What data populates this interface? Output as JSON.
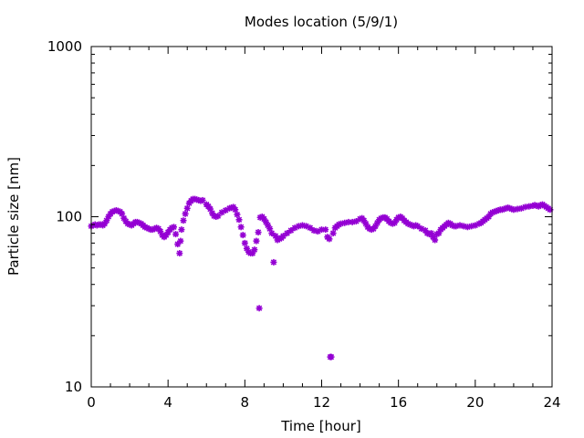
{
  "chart_data": {
    "type": "scatter",
    "title": "Modes location (5/9/1)",
    "xlabel": "Time [hour]",
    "ylabel": "Particle size [nm]",
    "xlim": [
      0,
      24
    ],
    "ylim": [
      10,
      1000
    ],
    "yscale": "log",
    "x_ticks": [
      0,
      4,
      8,
      12,
      16,
      20,
      24
    ],
    "x_tick_labels": [
      "0",
      "4",
      "8",
      "12",
      "16",
      "20",
      "24"
    ],
    "y_ticks": [
      10,
      100,
      1000
    ],
    "y_tick_labels": [
      "10",
      "100",
      "1000"
    ],
    "grid": false,
    "marker_color": "#9400d3",
    "marker": "star",
    "points": [
      [
        0.0,
        88
      ],
      [
        0.1,
        89
      ],
      [
        0.2,
        90
      ],
      [
        0.3,
        89
      ],
      [
        0.4,
        90
      ],
      [
        0.5,
        90
      ],
      [
        0.6,
        89
      ],
      [
        0.7,
        91
      ],
      [
        0.8,
        95
      ],
      [
        0.9,
        100
      ],
      [
        1.0,
        104
      ],
      [
        1.1,
        107
      ],
      [
        1.2,
        108
      ],
      [
        1.3,
        109
      ],
      [
        1.4,
        108
      ],
      [
        1.5,
        107
      ],
      [
        1.6,
        104
      ],
      [
        1.7,
        98
      ],
      [
        1.8,
        94
      ],
      [
        1.9,
        91
      ],
      [
        2.0,
        90
      ],
      [
        2.1,
        89
      ],
      [
        2.2,
        91
      ],
      [
        2.3,
        93
      ],
      [
        2.4,
        93
      ],
      [
        2.5,
        92
      ],
      [
        2.6,
        91
      ],
      [
        2.7,
        89
      ],
      [
        2.8,
        87
      ],
      [
        2.9,
        86
      ],
      [
        3.0,
        85
      ],
      [
        3.1,
        84
      ],
      [
        3.2,
        84
      ],
      [
        3.3,
        85
      ],
      [
        3.4,
        86
      ],
      [
        3.5,
        85
      ],
      [
        3.6,
        82
      ],
      [
        3.7,
        78
      ],
      [
        3.8,
        76
      ],
      [
        3.9,
        78
      ],
      [
        4.0,
        81
      ],
      [
        4.1,
        84
      ],
      [
        4.2,
        86
      ],
      [
        4.3,
        87
      ],
      [
        4.4,
        79
      ],
      [
        4.5,
        69
      ],
      [
        4.6,
        61
      ],
      [
        4.65,
        72
      ],
      [
        4.7,
        84
      ],
      [
        4.8,
        95
      ],
      [
        4.9,
        104
      ],
      [
        5.0,
        112
      ],
      [
        5.1,
        120
      ],
      [
        5.2,
        124
      ],
      [
        5.3,
        127
      ],
      [
        5.4,
        127
      ],
      [
        5.5,
        126
      ],
      [
        5.6,
        125
      ],
      [
        5.7,
        124
      ],
      [
        5.8,
        125
      ],
      [
        6.0,
        118
      ],
      [
        6.1,
        115
      ],
      [
        6.2,
        111
      ],
      [
        6.3,
        105
      ],
      [
        6.4,
        101
      ],
      [
        6.5,
        100
      ],
      [
        6.6,
        101
      ],
      [
        6.8,
        106
      ],
      [
        7.0,
        109
      ],
      [
        7.2,
        112
      ],
      [
        7.3,
        113
      ],
      [
        7.4,
        114
      ],
      [
        7.5,
        110
      ],
      [
        7.6,
        103
      ],
      [
        7.7,
        96
      ],
      [
        7.8,
        87
      ],
      [
        7.9,
        78
      ],
      [
        8.0,
        70
      ],
      [
        8.1,
        65
      ],
      [
        8.2,
        62
      ],
      [
        8.3,
        61
      ],
      [
        8.4,
        61
      ],
      [
        8.5,
        64
      ],
      [
        8.6,
        72
      ],
      [
        8.7,
        81
      ],
      [
        8.75,
        29
      ],
      [
        8.8,
        99
      ],
      [
        8.9,
        100
      ],
      [
        9.0,
        97
      ],
      [
        9.1,
        93
      ],
      [
        9.2,
        89
      ],
      [
        9.3,
        85
      ],
      [
        9.4,
        80
      ],
      [
        9.5,
        54
      ],
      [
        9.6,
        77
      ],
      [
        9.7,
        73
      ],
      [
        9.8,
        74
      ],
      [
        9.9,
        75
      ],
      [
        10.0,
        77
      ],
      [
        10.2,
        80
      ],
      [
        10.4,
        83
      ],
      [
        10.6,
        86
      ],
      [
        10.8,
        88
      ],
      [
        11.0,
        89
      ],
      [
        11.2,
        88
      ],
      [
        11.4,
        86
      ],
      [
        11.6,
        83
      ],
      [
        11.8,
        82
      ],
      [
        12.0,
        84
      ],
      [
        12.2,
        84
      ],
      [
        12.3,
        76
      ],
      [
        12.4,
        74
      ],
      [
        12.45,
        15
      ],
      [
        12.5,
        15
      ],
      [
        12.6,
        80
      ],
      [
        12.7,
        86
      ],
      [
        12.8,
        88
      ],
      [
        12.9,
        90
      ],
      [
        13.0,
        91
      ],
      [
        13.2,
        92
      ],
      [
        13.4,
        93
      ],
      [
        13.6,
        93
      ],
      [
        13.8,
        94
      ],
      [
        14.0,
        97
      ],
      [
        14.1,
        98
      ],
      [
        14.2,
        95
      ],
      [
        14.3,
        91
      ],
      [
        14.4,
        87
      ],
      [
        14.5,
        85
      ],
      [
        14.6,
        84
      ],
      [
        14.7,
        85
      ],
      [
        14.8,
        88
      ],
      [
        14.9,
        92
      ],
      [
        15.0,
        96
      ],
      [
        15.1,
        98
      ],
      [
        15.2,
        99
      ],
      [
        15.3,
        99
      ],
      [
        15.4,
        97
      ],
      [
        15.5,
        94
      ],
      [
        15.6,
        92
      ],
      [
        15.7,
        91
      ],
      [
        15.8,
        92
      ],
      [
        15.9,
        96
      ],
      [
        16.0,
        99
      ],
      [
        16.1,
        100
      ],
      [
        16.2,
        98
      ],
      [
        16.3,
        95
      ],
      [
        16.4,
        93
      ],
      [
        16.5,
        91
      ],
      [
        16.6,
        90
      ],
      [
        16.7,
        89
      ],
      [
        16.8,
        88
      ],
      [
        16.9,
        89
      ],
      [
        17.0,
        88
      ],
      [
        17.2,
        85
      ],
      [
        17.4,
        83
      ],
      [
        17.5,
        80
      ],
      [
        17.6,
        79
      ],
      [
        17.7,
        80
      ],
      [
        17.8,
        76
      ],
      [
        17.9,
        73
      ],
      [
        18.0,
        79
      ],
      [
        18.1,
        80
      ],
      [
        18.2,
        84
      ],
      [
        18.3,
        86
      ],
      [
        18.4,
        88
      ],
      [
        18.5,
        90
      ],
      [
        18.6,
        92
      ],
      [
        18.7,
        91
      ],
      [
        18.8,
        89
      ],
      [
        18.9,
        88
      ],
      [
        19.0,
        88
      ],
      [
        19.2,
        89
      ],
      [
        19.4,
        88
      ],
      [
        19.6,
        87
      ],
      [
        19.8,
        88
      ],
      [
        20.0,
        89
      ],
      [
        20.2,
        91
      ],
      [
        20.3,
        92
      ],
      [
        20.4,
        94
      ],
      [
        20.5,
        96
      ],
      [
        20.6,
        98
      ],
      [
        20.7,
        100
      ],
      [
        20.8,
        104
      ],
      [
        20.9,
        106
      ],
      [
        21.0,
        107
      ],
      [
        21.1,
        108
      ],
      [
        21.2,
        109
      ],
      [
        21.3,
        110
      ],
      [
        21.4,
        110
      ],
      [
        21.5,
        111
      ],
      [
        21.6,
        112
      ],
      [
        21.7,
        113
      ],
      [
        21.8,
        112
      ],
      [
        21.9,
        111
      ],
      [
        22.0,
        110
      ],
      [
        22.2,
        111
      ],
      [
        22.4,
        112
      ],
      [
        22.6,
        114
      ],
      [
        22.8,
        115
      ],
      [
        23.0,
        116
      ],
      [
        23.1,
        117
      ],
      [
        23.2,
        116
      ],
      [
        23.3,
        115
      ],
      [
        23.4,
        117
      ],
      [
        23.5,
        118
      ],
      [
        23.6,
        116
      ],
      [
        23.7,
        114
      ],
      [
        23.8,
        112
      ],
      [
        23.9,
        110
      ]
    ]
  }
}
